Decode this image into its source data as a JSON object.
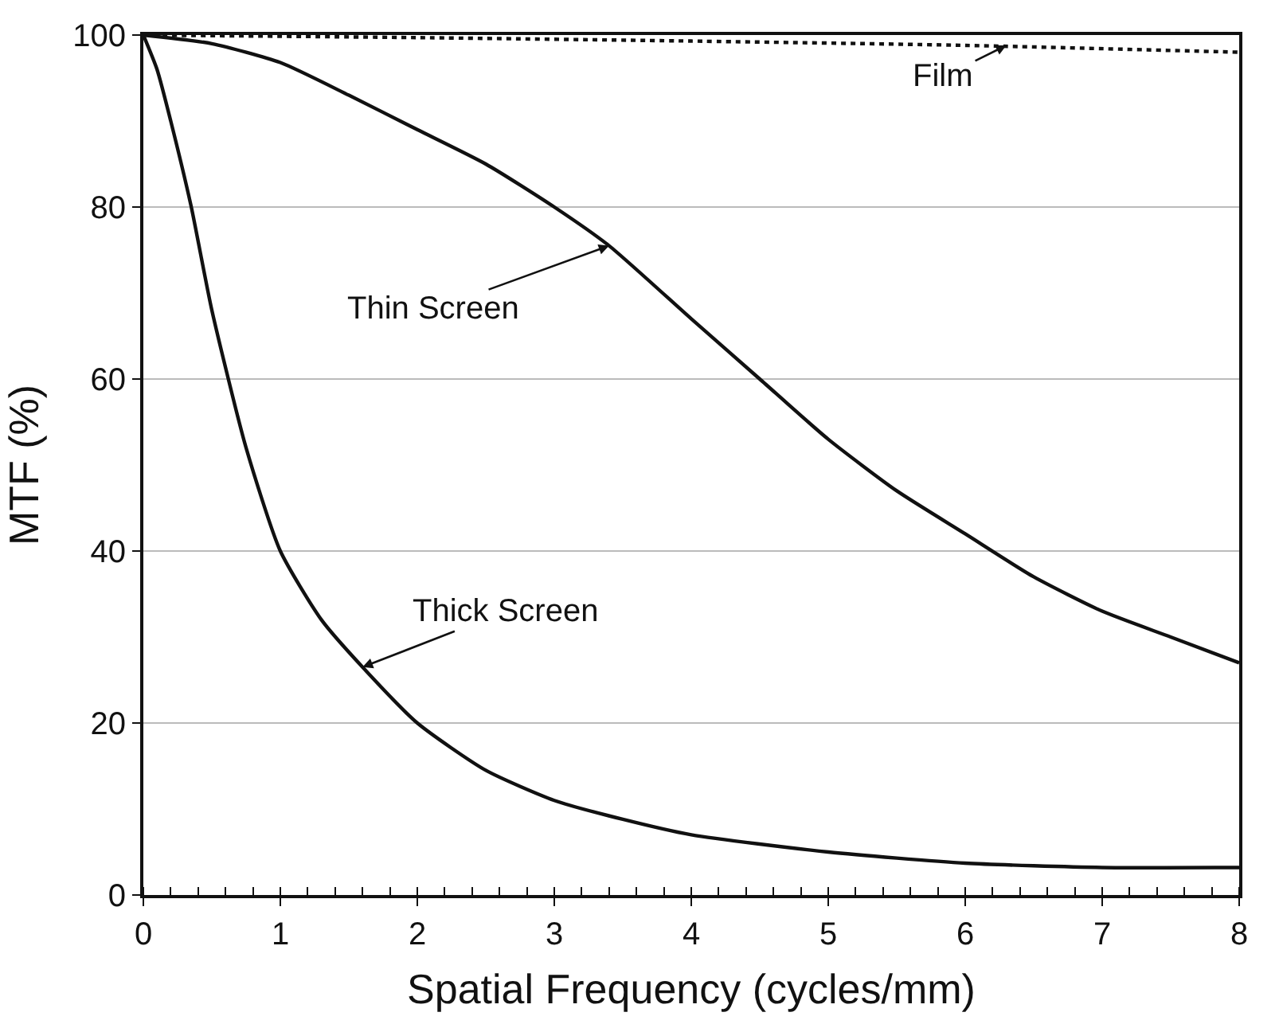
{
  "chart_data": {
    "type": "line",
    "xlabel": "Spatial Frequency (cycles/mm)",
    "ylabel": "MTF (%)",
    "xlim": [
      0,
      8
    ],
    "xticks": [
      0,
      1,
      2,
      3,
      4,
      5,
      6,
      7,
      8
    ],
    "ylim": [
      0,
      100
    ],
    "yticks": [
      0,
      20,
      40,
      60,
      80,
      100
    ],
    "grid": "y",
    "legend": false,
    "marker": "none",
    "annotations": [
      {
        "text": "Film",
        "x": 6.3,
        "y": 98.8
      },
      {
        "text": "Thin Screen",
        "x": 3.4,
        "y": 75.5
      },
      {
        "text": "Thick Screen",
        "x": 1.6,
        "y": 26.5
      }
    ],
    "series": [
      {
        "color": "#111111",
        "line_style": "dotted",
        "x": [
          0,
          2,
          4,
          6,
          8
        ],
        "values": [
          100,
          99.7,
          99.3,
          98.8,
          98
        ]
      },
      {
        "color": "#111111",
        "line_style": "solid",
        "x": [
          0,
          0.5,
          1,
          1.5,
          2,
          2.5,
          3,
          3.4,
          4,
          4.5,
          5,
          5.5,
          6,
          6.5,
          7,
          7.5,
          8
        ],
        "values": [
          100,
          99,
          96.8,
          93,
          89,
          85,
          80,
          75.5,
          67,
          60,
          53,
          47,
          42,
          37,
          33,
          30,
          27
        ]
      },
      {
        "color": "#111111",
        "line_style": "solid",
        "x": [
          0,
          0.1,
          0.2,
          0.35,
          0.5,
          0.75,
          1,
          1.3,
          1.6,
          2,
          2.5,
          3,
          3.5,
          4,
          5,
          6,
          7,
          8
        ],
        "values": [
          100,
          96,
          90,
          80,
          68,
          52,
          40,
          32,
          26.5,
          20,
          14.5,
          11,
          8.8,
          7,
          5,
          3.7,
          3.2,
          3.2
        ]
      }
    ]
  }
}
